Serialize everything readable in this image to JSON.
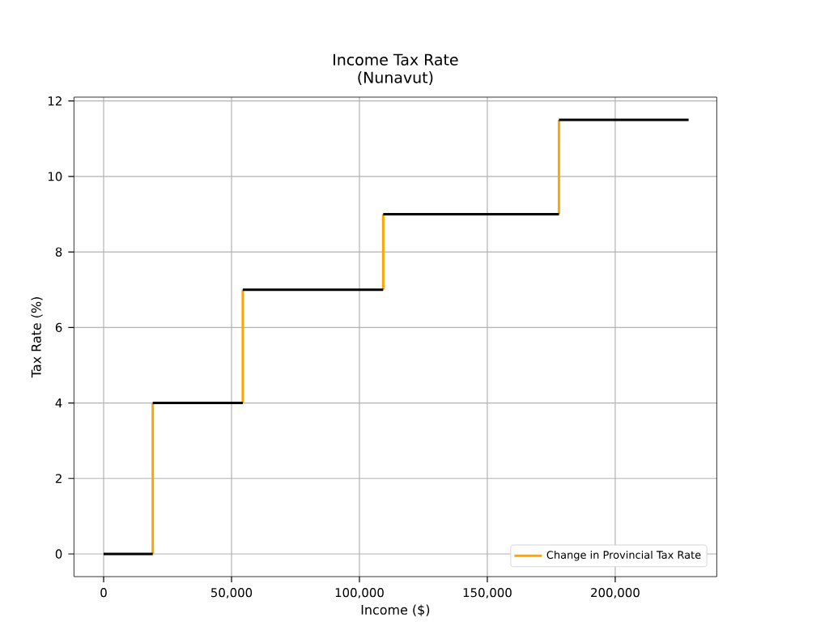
{
  "chart_data": {
    "type": "line",
    "title": "Income Tax Rate\n(Nunavut)",
    "xlabel": "Income ($)",
    "ylabel": "Tax Rate (%)",
    "xlim": [
      -11600,
      239700
    ],
    "ylim": [
      -0.6,
      12.1
    ],
    "xticks": [
      {
        "value": 0,
        "label": "0"
      },
      {
        "value": 50000,
        "label": "50,000"
      },
      {
        "value": 100000,
        "label": "100,000"
      },
      {
        "value": 150000,
        "label": "150,000"
      },
      {
        "value": 200000,
        "label": "200,000"
      }
    ],
    "yticks": [
      0,
      2,
      4,
      6,
      8,
      10,
      12
    ],
    "grid": true,
    "legend": "bottom right",
    "marker": "none",
    "line_style": "solid",
    "series": [
      {
        "name": "Change in Provincial Tax Rate",
        "color": "#ffa500",
        "x": [
          19200,
          19200
        ],
        "values": [
          0,
          4
        ]
      },
      {
        "color": "#ffa500",
        "x": [
          54400,
          54400
        ],
        "values": [
          4,
          7
        ]
      },
      {
        "color": "#ffa500",
        "x": [
          109300,
          109300
        ],
        "values": [
          7,
          9
        ]
      },
      {
        "color": "#ffa500",
        "x": [
          178000,
          178000
        ],
        "values": [
          9,
          11.5
        ]
      },
      {
        "color": "#000000",
        "x": [
          0,
          19200
        ],
        "values": [
          0,
          0
        ]
      },
      {
        "color": "#000000",
        "x": [
          19200,
          54400
        ],
        "values": [
          4,
          4
        ]
      },
      {
        "color": "#000000",
        "x": [
          54400,
          109300
        ],
        "values": [
          7,
          7
        ]
      },
      {
        "color": "#000000",
        "x": [
          109300,
          178000
        ],
        "values": [
          9,
          9
        ]
      },
      {
        "color": "#000000",
        "x": [
          178000,
          228700
        ],
        "values": [
          11.5,
          11.5
        ]
      }
    ]
  }
}
